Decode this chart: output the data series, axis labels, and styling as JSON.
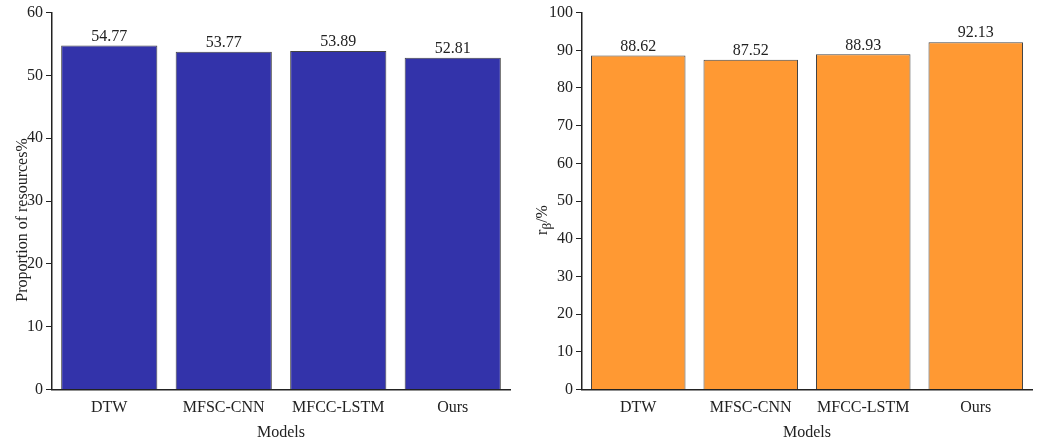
{
  "chart_data": [
    {
      "type": "bar",
      "categories": [
        "DTW",
        "MFSC-CNN",
        "MFCC-LSTM",
        "Ours"
      ],
      "values": [
        54.77,
        53.77,
        53.89,
        52.81
      ],
      "color": "#3333aa",
      "xlabel": "Models",
      "ylabel": "Proportion of resources%",
      "ylim": [
        0,
        60
      ],
      "yticks": [
        0,
        10,
        20,
        30,
        40,
        50,
        60
      ],
      "data_labels": true,
      "grid": false,
      "legend": false
    },
    {
      "type": "bar",
      "categories": [
        "DTW",
        "MFSC-CNN",
        "MFCC-LSTM",
        "Ours"
      ],
      "values": [
        88.62,
        87.52,
        88.93,
        92.13
      ],
      "color": "#ff9933",
      "xlabel": "Models",
      "ylabel": "r$_{β}$/%",
      "ylim": [
        0,
        100
      ],
      "yticks": [
        0,
        10,
        20,
        30,
        40,
        50,
        60,
        70,
        80,
        90,
        100
      ],
      "data_labels": true,
      "grid": false,
      "legend": false
    }
  ]
}
